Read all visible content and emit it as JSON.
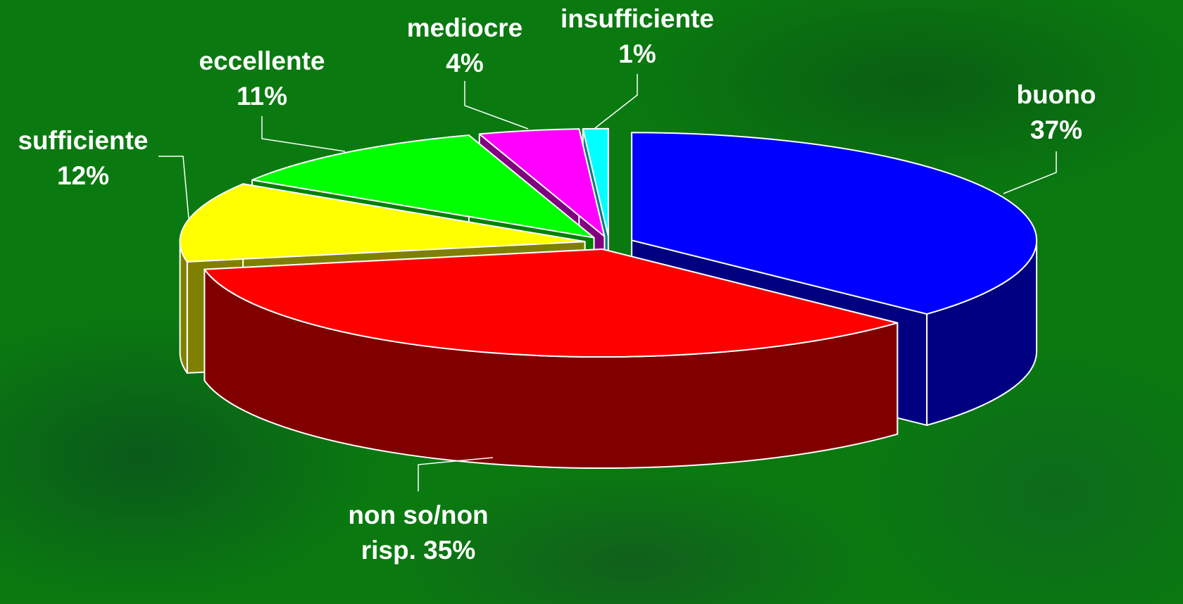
{
  "chart_data": {
    "type": "pie",
    "categories": [
      "buono",
      "non so/non risp.",
      "sufficiente",
      "eccellente",
      "mediocre",
      "insufficiente"
    ],
    "values": [
      37,
      35,
      12,
      11,
      4,
      1
    ],
    "value_labels": [
      "37%",
      "35%",
      "12%",
      "11%",
      "4%",
      "1%"
    ],
    "colors": [
      "#0000ff",
      "#ff0000",
      "#ffff00",
      "#00ff00",
      "#ff00ff",
      "#00ffff"
    ]
  }
}
